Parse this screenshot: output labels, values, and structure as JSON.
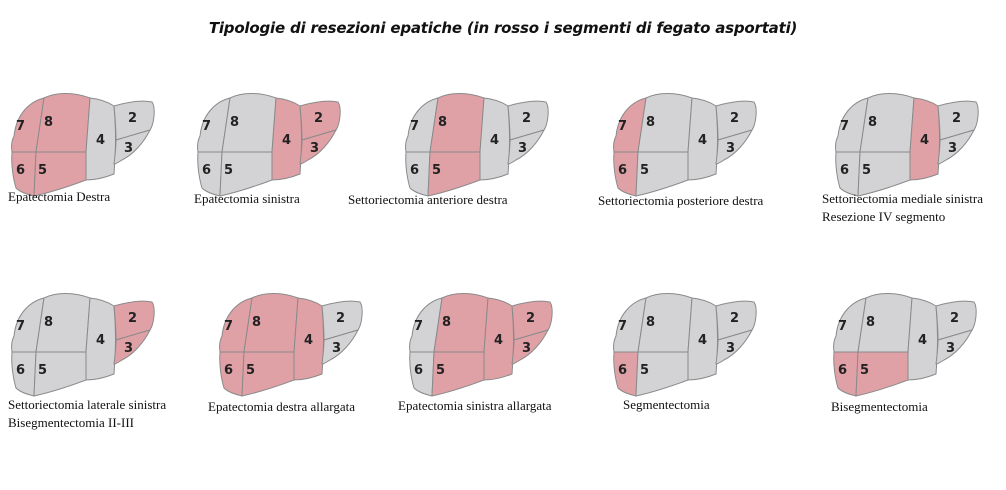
{
  "title": "Tipologie di resezioni epatiche (in rosso i segmenti di fegato asportati)",
  "colors": {
    "removed": "#e0a1a6",
    "remaining": "#d3d3d6",
    "outline": "#8a8a8a"
  },
  "segment_labels": {
    "s2": "2",
    "s3": "3",
    "s4": "4",
    "s5": "5",
    "s6": "6",
    "s7": "7",
    "s8": "8"
  },
  "diagrams": [
    {
      "caption": [
        "Epatectomia Destra"
      ],
      "removed": [
        "5",
        "6",
        "7",
        "8"
      ]
    },
    {
      "caption": [
        "Epatectomia sinistra"
      ],
      "removed": [
        "2",
        "3",
        "4"
      ]
    },
    {
      "caption": [
        "Settoriectomia anteriore destra"
      ],
      "removed": [
        "5",
        "8"
      ]
    },
    {
      "caption": [
        "Settoriectomia posteriore destra"
      ],
      "removed": [
        "6",
        "7"
      ]
    },
    {
      "caption": [
        "Settoriectomia mediale sinistra",
        "Resezione IV segmento"
      ],
      "removed": [
        "4"
      ]
    },
    {
      "caption": [
        "Settoriectomia laterale sinistra",
        "Bisegmentectomia II-III"
      ],
      "removed": [
        "2",
        "3"
      ]
    },
    {
      "caption": [
        "Epatectomia destra allargata"
      ],
      "removed": [
        "4",
        "5",
        "6",
        "7",
        "8"
      ]
    },
    {
      "caption": [
        "Epatectomia sinistra allargata"
      ],
      "removed": [
        "2",
        "3",
        "4",
        "5",
        "8"
      ]
    },
    {
      "caption": [
        "Segmentectomia"
      ],
      "removed": [
        "6"
      ]
    },
    {
      "caption": [
        "Bisegmentectomia"
      ],
      "removed": [
        "5",
        "6"
      ]
    }
  ]
}
